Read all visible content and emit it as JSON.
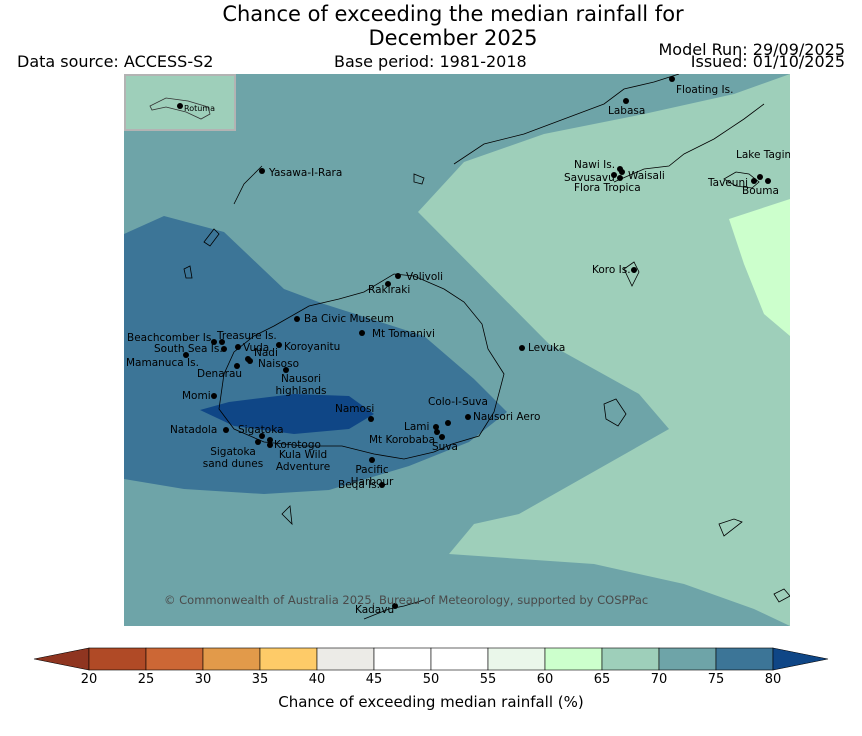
{
  "header": {
    "title_line1": "Chance of exceeding the median rainfall for",
    "title_line2": "December 2025",
    "data_source": "Data source: ACCESS-S2",
    "base_period": "Base period: 1981-2018",
    "model_run": "Model Run: 29/09/2025",
    "issued": "Issued: 01/10/2025"
  },
  "map": {
    "inset_label": "Rotuma",
    "copyright": "© Commonwealth of Australia 2025, Bureau of Meteorology, supported by COSPPac",
    "places": [
      {
        "name": "Floating Is."
      },
      {
        "name": "Labasa"
      },
      {
        "name": "Nawi Is."
      },
      {
        "name": "Savusavu"
      },
      {
        "name": "Waisali"
      },
      {
        "name": "Flora Tropica"
      },
      {
        "name": "Lake Tagimaucia"
      },
      {
        "name": "Taveuni"
      },
      {
        "name": "Bouma"
      },
      {
        "name": "Yasawa-I-Rara"
      },
      {
        "name": "Koro Is."
      },
      {
        "name": "Volivoli"
      },
      {
        "name": "Rakiraki"
      },
      {
        "name": "Ba Civic Museum"
      },
      {
        "name": "Mt Tomanivi"
      },
      {
        "name": "Beachcomber Is."
      },
      {
        "name": "Treasure Is."
      },
      {
        "name": "South Sea Is."
      },
      {
        "name": "Vuda"
      },
      {
        "name": "Koroyanitu"
      },
      {
        "name": "Mamanuca Is."
      },
      {
        "name": "Nadi"
      },
      {
        "name": "Naisoso"
      },
      {
        "name": "Denarau"
      },
      {
        "name": "Levuka"
      },
      {
        "name": "Nausori highlands"
      },
      {
        "name": "Momi"
      },
      {
        "name": "Namosi"
      },
      {
        "name": "Colo-I-Suva"
      },
      {
        "name": "Nausori Aero"
      },
      {
        "name": "Lami"
      },
      {
        "name": "Mt Korobaba"
      },
      {
        "name": "Suva"
      },
      {
        "name": "Natadola"
      },
      {
        "name": "Sigatoka"
      },
      {
        "name": "Korotogo"
      },
      {
        "name": "Sigatoka sand dunes"
      },
      {
        "name": "Kula Wild Adventure"
      },
      {
        "name": "Pacific Harbour"
      },
      {
        "name": "Beqa Is."
      },
      {
        "name": "Kadavu"
      }
    ]
  },
  "colorbar": {
    "label": "Chance of exceeding median rainfall (%)",
    "ticks": [
      "20",
      "25",
      "30",
      "35",
      "40",
      "45",
      "50",
      "55",
      "60",
      "65",
      "70",
      "75",
      "80"
    ],
    "colors": {
      "below20": "#8f3520",
      "20_25": "#b04a26",
      "25_30": "#cc6735",
      "30_35": "#e29a4a",
      "35_40": "#fecb68",
      "40_45": "#ecebe7",
      "45_50": "#ffffff",
      "50_55": "#ffffff",
      "55_60": "#eaf7ea",
      "60_65": "#ccffcc",
      "65_70": "#9ecfba",
      "70_75": "#6ea4a8",
      "75_80": "#3c7597",
      "above80": "#0f4686"
    }
  }
}
